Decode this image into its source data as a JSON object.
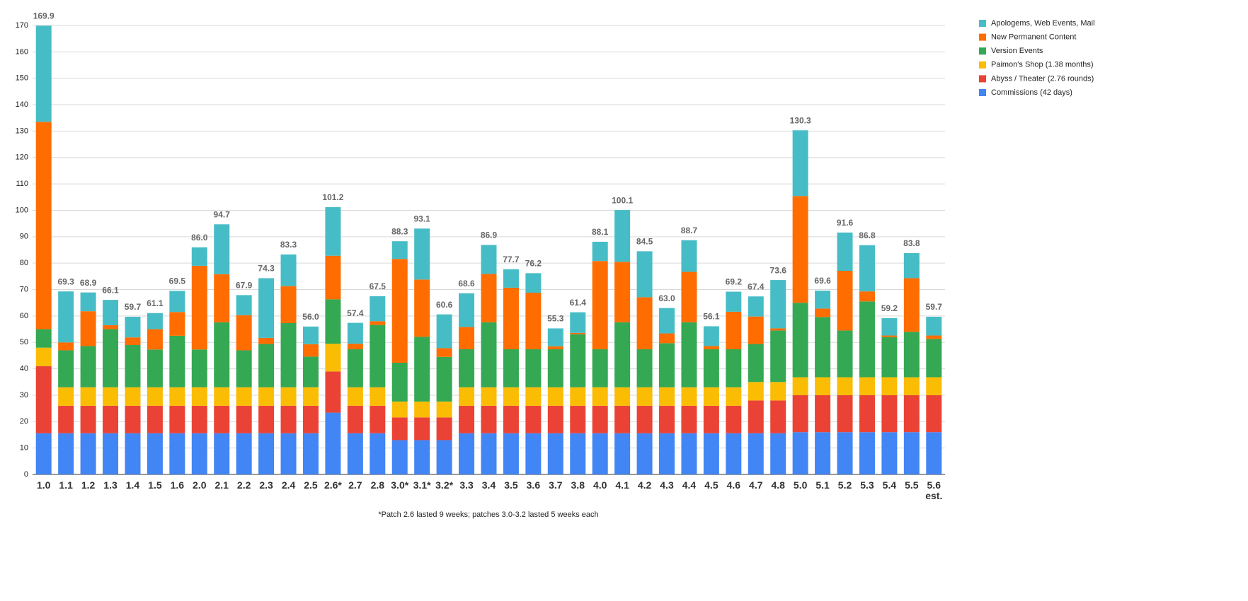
{
  "chart_data": {
    "type": "stacked_bar",
    "categories": [
      "1.0",
      "1.1",
      "1.2",
      "1.3",
      "1.4",
      "1.5",
      "1.6",
      "2.0",
      "2.1",
      "2.2",
      "2.3",
      "2.4",
      "2.5",
      "2.6*",
      "2.7",
      "2.8",
      "3.0*",
      "3.1*",
      "3.2*",
      "3.3",
      "3.4",
      "3.5",
      "3.6",
      "3.7",
      "3.8",
      "4.0",
      "4.1",
      "4.2",
      "4.3",
      "4.4",
      "4.5",
      "4.6",
      "4.7",
      "4.8",
      "5.0",
      "5.1",
      "5.2",
      "5.3",
      "5.4",
      "5.5",
      "5.6\nest."
    ],
    "series": [
      {
        "name": "Apologems, Web Events, Mail",
        "color": "#46bdc6",
        "values": [
          36.4,
          19.3,
          7.1,
          9.6,
          7.8,
          6.1,
          8,
          7,
          18.9,
          7.6,
          22.6,
          12,
          6.7,
          18.4,
          7.9,
          9.5,
          6.7,
          19.3,
          12.8,
          12.8,
          11,
          7,
          7.4,
          6.8,
          7.8,
          7.3,
          19.6,
          17.4,
          9.6,
          12,
          7.5,
          7.6,
          7.6,
          18.3,
          24.9,
          6.8,
          14.5,
          17.5,
          6.6,
          9.5,
          7.1
        ]
      },
      {
        "name": "New Permanent Content",
        "color": "#ff6d01",
        "values": [
          78.5,
          3,
          13.2,
          1.5,
          2.9,
          7.7,
          9,
          31.7,
          18.2,
          13.3,
          2.3,
          14,
          4.7,
          16.5,
          2.1,
          1.4,
          39.3,
          21.7,
          3.3,
          8.4,
          18.3,
          23.3,
          21.4,
          1.1,
          0.5,
          33.4,
          22.9,
          19.7,
          3.7,
          19.1,
          1.2,
          14.2,
          10.4,
          0.8,
          40.4,
          3.2,
          22.6,
          3.8,
          0.6,
          20.3,
          1.3
        ]
      },
      {
        "name": "Version Events",
        "color": "#34a853",
        "values": [
          7,
          14,
          15.6,
          22,
          16,
          14.3,
          19.5,
          14.3,
          24.6,
          14,
          16.4,
          24.3,
          11.6,
          16.8,
          14.4,
          23.6,
          14.7,
          24.5,
          16.9,
          14.4,
          24.6,
          14.4,
          14.4,
          14.4,
          20.1,
          14.4,
          24.6,
          14.4,
          16.7,
          24.6,
          14.4,
          14.4,
          14.4,
          19.5,
          28.2,
          22.8,
          17.7,
          28.7,
          15.2,
          17.2,
          14.5
        ]
      },
      {
        "name": "Paimon's Shop (1.38 months)",
        "color": "#fbbc04",
        "values": [
          7,
          7,
          7,
          7,
          7,
          7,
          7,
          7,
          7,
          7,
          7,
          7,
          7,
          10.5,
          7,
          7,
          6,
          6,
          6,
          7,
          7,
          7,
          7,
          7,
          7,
          7,
          7,
          7,
          7,
          7,
          7,
          7,
          7,
          7,
          6.8,
          6.8,
          6.8,
          6.8,
          6.8,
          6.8,
          6.8
        ]
      },
      {
        "name": "Abyss / Theater (2.76 rounds)",
        "color": "#ea4335",
        "values": [
          25.4,
          10.4,
          10.4,
          10.4,
          10.4,
          10.4,
          10.4,
          10.4,
          10.4,
          10.4,
          10.4,
          10.4,
          10.4,
          15.6,
          10.4,
          10.4,
          8.6,
          8.6,
          8.6,
          10.4,
          10.4,
          10.4,
          10.4,
          10.4,
          10.4,
          10.4,
          10.4,
          10.4,
          10.4,
          10.4,
          10.4,
          10.4,
          12.4,
          12.4,
          14,
          14,
          14,
          14,
          14,
          14,
          14
        ]
      },
      {
        "name": "Commissions (42 days)",
        "color": "#4285f4",
        "values": [
          15.6,
          15.6,
          15.6,
          15.6,
          15.6,
          15.6,
          15.6,
          15.6,
          15.6,
          15.6,
          15.6,
          15.6,
          15.6,
          23.4,
          15.6,
          15.6,
          13,
          13,
          13,
          15.6,
          15.6,
          15.6,
          15.6,
          15.6,
          15.6,
          15.6,
          15.6,
          15.6,
          15.6,
          15.6,
          15.6,
          15.6,
          15.6,
          15.6,
          16,
          16,
          16,
          16,
          16,
          16,
          16
        ]
      }
    ],
    "total_labels": [
      "169.9",
      "69.3",
      "68.9",
      "66.1",
      "59.7",
      "61.1",
      "69.5",
      "86.0",
      "94.7",
      "67.9",
      "74.3",
      "83.3",
      "56.0",
      "101.2",
      "57.4",
      "67.5",
      "88.3",
      "93.1",
      "60.6",
      "68.6",
      "86.9",
      "77.7",
      "76.2",
      "55.3",
      "61.4",
      "88.1",
      "100.1",
      "84.5",
      "63.0",
      "88.7",
      "56.1",
      "69.2",
      "67.4",
      "73.6",
      "130.3",
      "69.6",
      "91.6",
      "86.8",
      "59.2",
      "83.8",
      "59.7"
    ],
    "ylim": [
      0,
      170
    ],
    "yticks": [
      0,
      10,
      20,
      30,
      40,
      50,
      60,
      70,
      80,
      90,
      100,
      110,
      120,
      130,
      140,
      150,
      160,
      170
    ],
    "grid": true,
    "legend": "right",
    "footnote": "*Patch 2.6 lasted 9 weeks; patches 3.0-3.2 lasted 5 weeks each"
  }
}
